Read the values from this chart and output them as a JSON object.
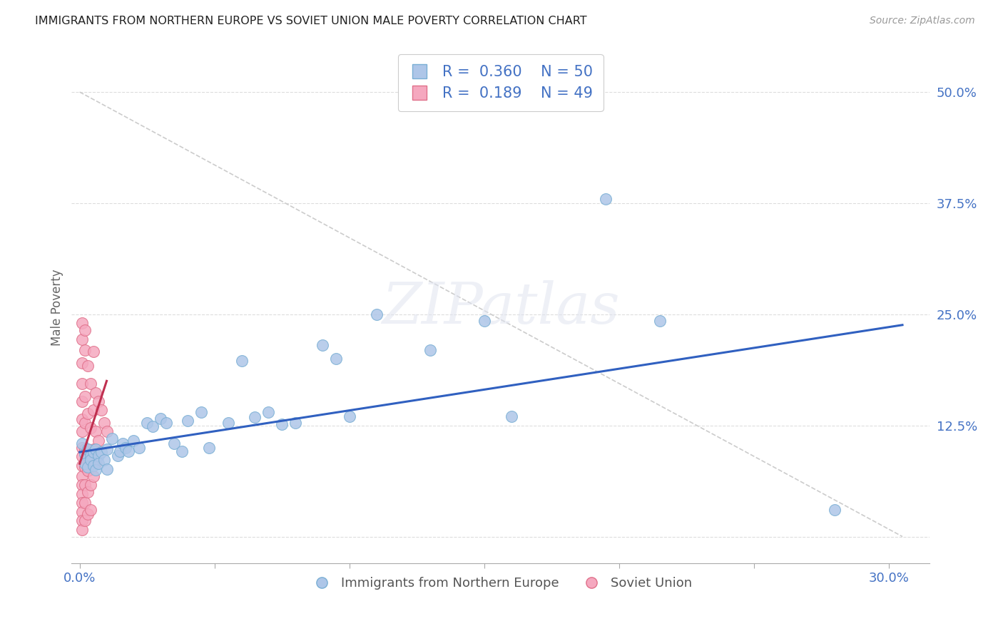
{
  "title": "IMMIGRANTS FROM NORTHERN EUROPE VS SOVIET UNION MALE POVERTY CORRELATION CHART",
  "source": "Source: ZipAtlas.com",
  "tick_color": "#4472c4",
  "ylabel": "Male Poverty",
  "x_tick_positions": [
    0.0,
    0.05,
    0.1,
    0.15,
    0.2,
    0.25,
    0.3
  ],
  "x_tick_labels": [
    "0.0%",
    "",
    "",
    "",
    "",
    "",
    "30.0%"
  ],
  "y_tick_positions": [
    0.0,
    0.125,
    0.25,
    0.375,
    0.5
  ],
  "y_tick_labels": [
    "",
    "12.5%",
    "25.0%",
    "37.5%",
    "50.0%"
  ],
  "xlim": [
    -0.003,
    0.315
  ],
  "ylim": [
    -0.03,
    0.545
  ],
  "R_northern": 0.36,
  "N_northern": 50,
  "R_soviet": 0.189,
  "N_soviet": 49,
  "northern_color": "#aec6e8",
  "northern_edge": "#7aafd4",
  "soviet_color": "#f5a8bf",
  "soviet_edge": "#e0708a",
  "northern_line_color": "#3060c0",
  "soviet_line_color": "#c03050",
  "blue_line": [
    [
      0.0,
      0.095
    ],
    [
      0.305,
      0.238
    ]
  ],
  "pink_line": [
    [
      0.0,
      0.082
    ],
    [
      0.01,
      0.175
    ]
  ],
  "diag_line": [
    [
      0.0,
      0.5
    ],
    [
      0.305,
      0.0
    ]
  ],
  "northern_dots": [
    [
      0.001,
      0.105
    ],
    [
      0.002,
      0.093
    ],
    [
      0.002,
      0.082
    ],
    [
      0.003,
      0.098
    ],
    [
      0.003,
      0.078
    ],
    [
      0.004,
      0.091
    ],
    [
      0.004,
      0.086
    ],
    [
      0.005,
      0.095
    ],
    [
      0.005,
      0.08
    ],
    [
      0.006,
      0.098
    ],
    [
      0.006,
      0.075
    ],
    [
      0.007,
      0.091
    ],
    [
      0.007,
      0.082
    ],
    [
      0.008,
      0.095
    ],
    [
      0.009,
      0.086
    ],
    [
      0.01,
      0.098
    ],
    [
      0.01,
      0.076
    ],
    [
      0.012,
      0.11
    ],
    [
      0.014,
      0.091
    ],
    [
      0.015,
      0.096
    ],
    [
      0.016,
      0.105
    ],
    [
      0.017,
      0.1
    ],
    [
      0.018,
      0.096
    ],
    [
      0.02,
      0.108
    ],
    [
      0.022,
      0.1
    ],
    [
      0.025,
      0.128
    ],
    [
      0.027,
      0.124
    ],
    [
      0.03,
      0.133
    ],
    [
      0.032,
      0.128
    ],
    [
      0.035,
      0.105
    ],
    [
      0.038,
      0.096
    ],
    [
      0.04,
      0.13
    ],
    [
      0.045,
      0.14
    ],
    [
      0.048,
      0.1
    ],
    [
      0.055,
      0.128
    ],
    [
      0.06,
      0.198
    ],
    [
      0.065,
      0.134
    ],
    [
      0.07,
      0.14
    ],
    [
      0.075,
      0.126
    ],
    [
      0.08,
      0.128
    ],
    [
      0.09,
      0.215
    ],
    [
      0.095,
      0.2
    ],
    [
      0.1,
      0.135
    ],
    [
      0.11,
      0.25
    ],
    [
      0.13,
      0.21
    ],
    [
      0.15,
      0.243
    ],
    [
      0.16,
      0.135
    ],
    [
      0.195,
      0.38
    ],
    [
      0.215,
      0.243
    ],
    [
      0.28,
      0.03
    ]
  ],
  "soviet_dots": [
    [
      0.001,
      0.24
    ],
    [
      0.001,
      0.222
    ],
    [
      0.001,
      0.195
    ],
    [
      0.001,
      0.172
    ],
    [
      0.001,
      0.152
    ],
    [
      0.001,
      0.132
    ],
    [
      0.001,
      0.118
    ],
    [
      0.001,
      0.1
    ],
    [
      0.001,
      0.09
    ],
    [
      0.001,
      0.08
    ],
    [
      0.001,
      0.068
    ],
    [
      0.001,
      0.058
    ],
    [
      0.001,
      0.048
    ],
    [
      0.001,
      0.038
    ],
    [
      0.001,
      0.028
    ],
    [
      0.001,
      0.018
    ],
    [
      0.001,
      0.008
    ],
    [
      0.002,
      0.232
    ],
    [
      0.002,
      0.21
    ],
    [
      0.002,
      0.158
    ],
    [
      0.002,
      0.128
    ],
    [
      0.002,
      0.098
    ],
    [
      0.002,
      0.078
    ],
    [
      0.002,
      0.058
    ],
    [
      0.002,
      0.038
    ],
    [
      0.002,
      0.018
    ],
    [
      0.003,
      0.192
    ],
    [
      0.003,
      0.138
    ],
    [
      0.003,
      0.098
    ],
    [
      0.003,
      0.074
    ],
    [
      0.003,
      0.05
    ],
    [
      0.003,
      0.025
    ],
    [
      0.004,
      0.172
    ],
    [
      0.004,
      0.122
    ],
    [
      0.004,
      0.088
    ],
    [
      0.004,
      0.058
    ],
    [
      0.004,
      0.03
    ],
    [
      0.005,
      0.208
    ],
    [
      0.005,
      0.142
    ],
    [
      0.005,
      0.098
    ],
    [
      0.005,
      0.068
    ],
    [
      0.006,
      0.162
    ],
    [
      0.006,
      0.118
    ],
    [
      0.006,
      0.082
    ],
    [
      0.007,
      0.152
    ],
    [
      0.007,
      0.108
    ],
    [
      0.008,
      0.142
    ],
    [
      0.009,
      0.128
    ],
    [
      0.01,
      0.118
    ]
  ]
}
